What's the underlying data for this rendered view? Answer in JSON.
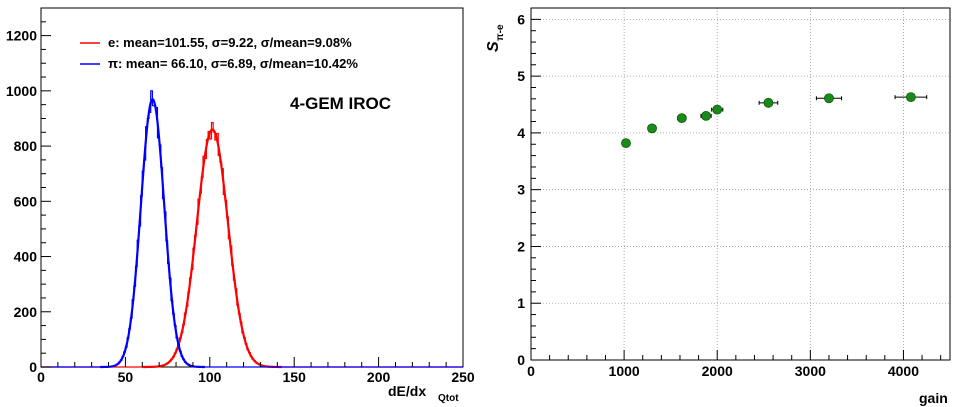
{
  "chart_data": [
    {
      "type": "line",
      "title": "",
      "xlabel": "dE/dx",
      "xlabel_sub": "Qtot",
      "ylabel": "",
      "xlim": [
        0,
        250
      ],
      "ylim": [
        0,
        1300
      ],
      "xticks": [
        "0",
        "50",
        "100",
        "150",
        "200",
        "250"
      ],
      "yticks": [
        "0",
        "200",
        "400",
        "600",
        "800",
        "1000",
        "1200"
      ],
      "grid": false,
      "legend_position": "top-left",
      "annotation": "4-GEM IROC",
      "colors": {
        "e": "#ff0000",
        "pi": "#0000ff"
      },
      "series": [
        {
          "key": "e",
          "name": "e: mean=101.55, σ=9.22, σ/mean=9.08%",
          "mean": 101.55,
          "sigma": 9.22,
          "peak": 860,
          "color": "#ff0000"
        },
        {
          "key": "pi",
          "name": "π: mean= 66.10, σ=6.89, σ/mean=10.42%",
          "mean": 66.1,
          "sigma": 6.89,
          "peak": 970,
          "color": "#0000ff"
        }
      ]
    },
    {
      "type": "scatter",
      "title": "",
      "xlabel": "gain",
      "ylabel": "S",
      "ylabel_sub": "π-e",
      "xlim": [
        0,
        4500
      ],
      "ylim": [
        0,
        6.2
      ],
      "xticks": [
        "0",
        "1000",
        "2000",
        "3000",
        "4000"
      ],
      "yticks": [
        "0",
        "1",
        "2",
        "3",
        "4",
        "5",
        "6"
      ],
      "grid": true,
      "color": "#1a8a1a",
      "points": [
        {
          "x": 1020,
          "y": 3.82,
          "xerr": 20
        },
        {
          "x": 1300,
          "y": 4.08,
          "xerr": 30
        },
        {
          "x": 1620,
          "y": 4.26,
          "xerr": 45
        },
        {
          "x": 1880,
          "y": 4.3,
          "xerr": 55
        },
        {
          "x": 2000,
          "y": 4.41,
          "xerr": 60
        },
        {
          "x": 2550,
          "y": 4.53,
          "xerr": 100
        },
        {
          "x": 3200,
          "y": 4.61,
          "xerr": 135
        },
        {
          "x": 4080,
          "y": 4.63,
          "xerr": 170
        }
      ]
    }
  ]
}
